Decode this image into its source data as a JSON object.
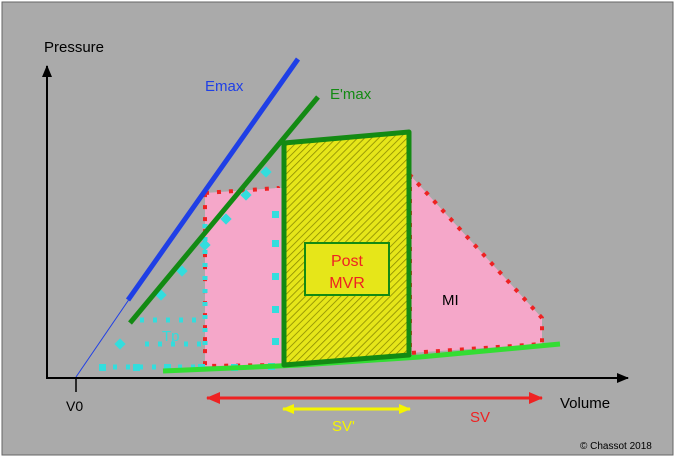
{
  "labels": {
    "pressure_axis": "Pressure",
    "volume_axis": "Volume",
    "v0": "V0",
    "emax": "Emax",
    "emax_prime": "E'max",
    "tp": "Tp",
    "post_mvr_line1": "Post",
    "post_mvr_line2": "MVR",
    "mi": "MI",
    "sv_prime": "SV'",
    "sv": "SV",
    "copyright": "© Chassot 2018"
  },
  "colors": {
    "background": "#aaaaaa",
    "axes": "#000000",
    "emax_line": "#1f3fe6",
    "emax_prime_line": "#138a13",
    "edpvr_line": "#33dd33",
    "mi_loop_fill": "#f5a7c9",
    "mi_loop_border": "#ee2222",
    "post_mvr_fill": "#e6e619",
    "post_mvr_hatch": "#8a8a00",
    "post_mvr_border": "#138a13",
    "tp_dots": "#33dddd",
    "sv_arrow": "#ee2222",
    "sv_prime_arrow": "#f5f500",
    "label_red": "#ee2222",
    "label_yellow": "#f5f500",
    "label_cyan": "#33dddd"
  }
}
